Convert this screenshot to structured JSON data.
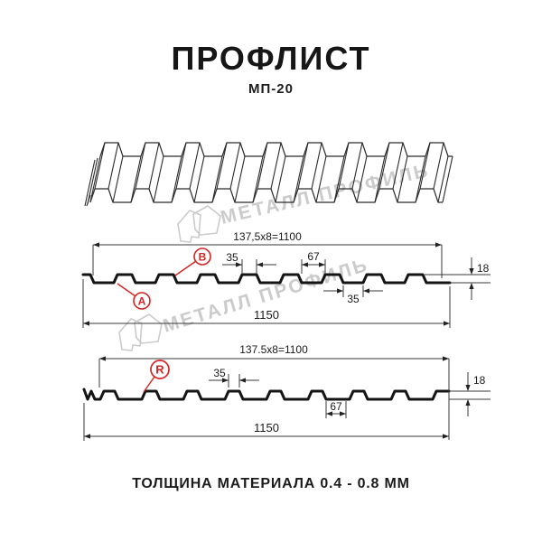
{
  "header": {
    "title": "ПРОФЛИСТ",
    "subtitle": "МП-20"
  },
  "footer": {
    "text": "ТОЛЩИНА МАТЕРИАЛА 0.4 - 0.8 ММ"
  },
  "watermark": {
    "brand": "МЕТАЛЛ ПРОФИЛЬ"
  },
  "colors": {
    "accent_red": "#d42424",
    "line_dark": "#141414",
    "watermark_gray": "#cbcbcb"
  },
  "section_a": {
    "dims": {
      "pitch": "137,5x8=1100",
      "rib_top": "35",
      "rib_gap": "67",
      "height": "18",
      "valley": "35",
      "overall": "1150"
    },
    "labels": {
      "a": "A",
      "b": "B"
    }
  },
  "section_r": {
    "dims": {
      "pitch": "137.5x8=1100",
      "rib_top": "35",
      "gap": "67",
      "height": "18",
      "overall": "1150"
    },
    "labels": {
      "r": "R"
    }
  }
}
